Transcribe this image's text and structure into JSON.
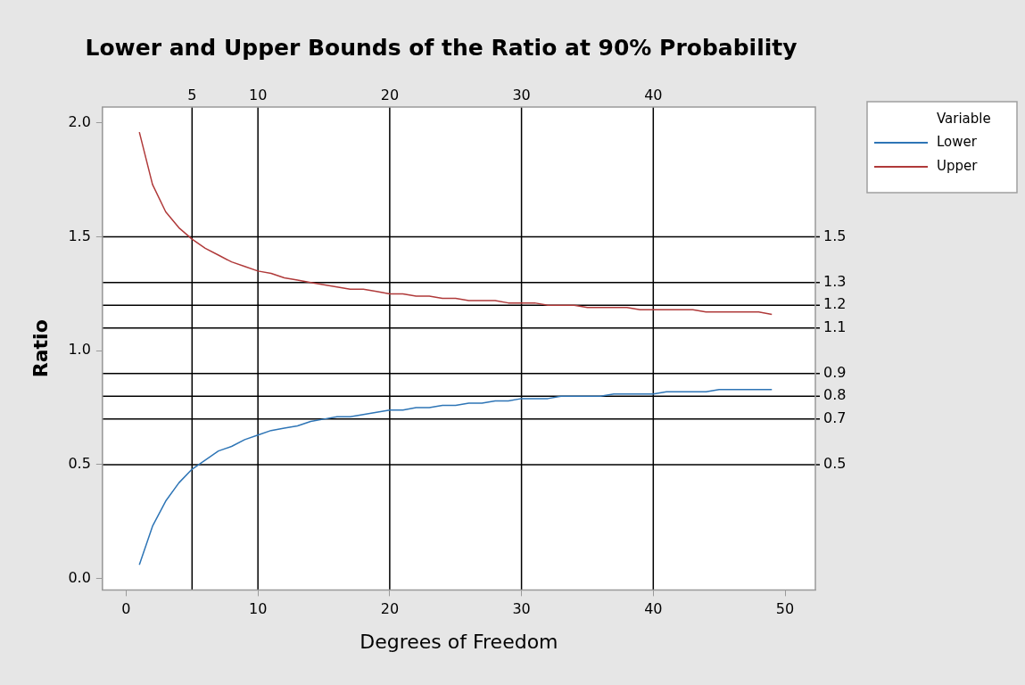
{
  "chart_data": {
    "type": "line",
    "title": "Lower and Upper Bounds of the Ratio at 90% Probability",
    "xlabel": "Degrees of Freedom",
    "ylabel": "Ratio",
    "legend_title": "Variable",
    "legend": "top right",
    "grid": false,
    "marker": "none",
    "line_style": "solid",
    "x": [
      1,
      2,
      3,
      4,
      5,
      6,
      7,
      8,
      9,
      10,
      11,
      12,
      13,
      14,
      15,
      16,
      17,
      18,
      19,
      20,
      21,
      22,
      23,
      24,
      25,
      26,
      27,
      28,
      29,
      30,
      31,
      32,
      33,
      34,
      35,
      36,
      37,
      38,
      39,
      40,
      41,
      42,
      43,
      44,
      45,
      46,
      47,
      48,
      49
    ],
    "xlim": [
      -1.8,
      52.3
    ],
    "xticks": [
      0,
      10,
      20,
      30,
      40,
      50
    ],
    "ylim": [
      -0.05,
      2.07
    ],
    "yticks": [
      {
        "value": 0,
        "label": "0.0"
      },
      0.5,
      {
        "value": 1,
        "label": "1.0"
      },
      1.5,
      {
        "value": 2,
        "label": "2.0"
      }
    ],
    "series": [
      {
        "name": "Lower",
        "color": "#2e75b6",
        "values": [
          0.06,
          0.23,
          0.34,
          0.42,
          0.48,
          0.52,
          0.56,
          0.58,
          0.61,
          0.63,
          0.65,
          0.66,
          0.67,
          0.69,
          0.7,
          0.71,
          0.71,
          0.72,
          0.73,
          0.74,
          0.74,
          0.75,
          0.75,
          0.76,
          0.76,
          0.77,
          0.77,
          0.78,
          0.78,
          0.79,
          0.79,
          0.79,
          0.8,
          0.8,
          0.8,
          0.8,
          0.81,
          0.81,
          0.81,
          0.81,
          0.82,
          0.82,
          0.82,
          0.82,
          0.83,
          0.83,
          0.83,
          0.83,
          0.83
        ]
      },
      {
        "name": "Upper",
        "color": "#b03a3a",
        "values": [
          1.96,
          1.73,
          1.61,
          1.54,
          1.49,
          1.45,
          1.42,
          1.39,
          1.37,
          1.35,
          1.34,
          1.32,
          1.31,
          1.3,
          1.29,
          1.28,
          1.27,
          1.27,
          1.26,
          1.25,
          1.25,
          1.24,
          1.24,
          1.23,
          1.23,
          1.22,
          1.22,
          1.22,
          1.21,
          1.21,
          1.21,
          1.2,
          1.2,
          1.2,
          1.19,
          1.19,
          1.19,
          1.19,
          1.18,
          1.18,
          1.18,
          1.18,
          1.18,
          1.17,
          1.17,
          1.17,
          1.17,
          1.17,
          1.16
        ]
      }
    ],
    "ref_lines": [
      {
        "axis": "x",
        "value": 5,
        "label": "5",
        "color": "#000000"
      },
      {
        "axis": "x",
        "value": 10,
        "label": "10",
        "color": "#000000"
      },
      {
        "axis": "x",
        "value": 20,
        "label": "20",
        "color": "#000000"
      },
      {
        "axis": "x",
        "value": 30,
        "label": "30",
        "color": "#000000"
      },
      {
        "axis": "x",
        "value": 40,
        "label": "40",
        "color": "#000000"
      },
      {
        "axis": "y",
        "value": 1.5,
        "label": "1.5",
        "color": "#000000"
      },
      {
        "axis": "y",
        "value": 1.3,
        "label": "1.3",
        "color": "#000000"
      },
      {
        "axis": "y",
        "value": 1.2,
        "label": "1.2",
        "color": "#000000"
      },
      {
        "axis": "y",
        "value": 1.1,
        "label": "1.1",
        "color": "#000000"
      },
      {
        "axis": "y",
        "value": 0.9,
        "label": "0.9",
        "color": "#000000"
      },
      {
        "axis": "y",
        "value": 0.8,
        "label": "0.8",
        "color": "#000000"
      },
      {
        "axis": "y",
        "value": 0.7,
        "label": "0.7",
        "color": "#000000"
      },
      {
        "axis": "y",
        "value": 0.5,
        "label": "0.5",
        "color": "#000000"
      }
    ]
  }
}
